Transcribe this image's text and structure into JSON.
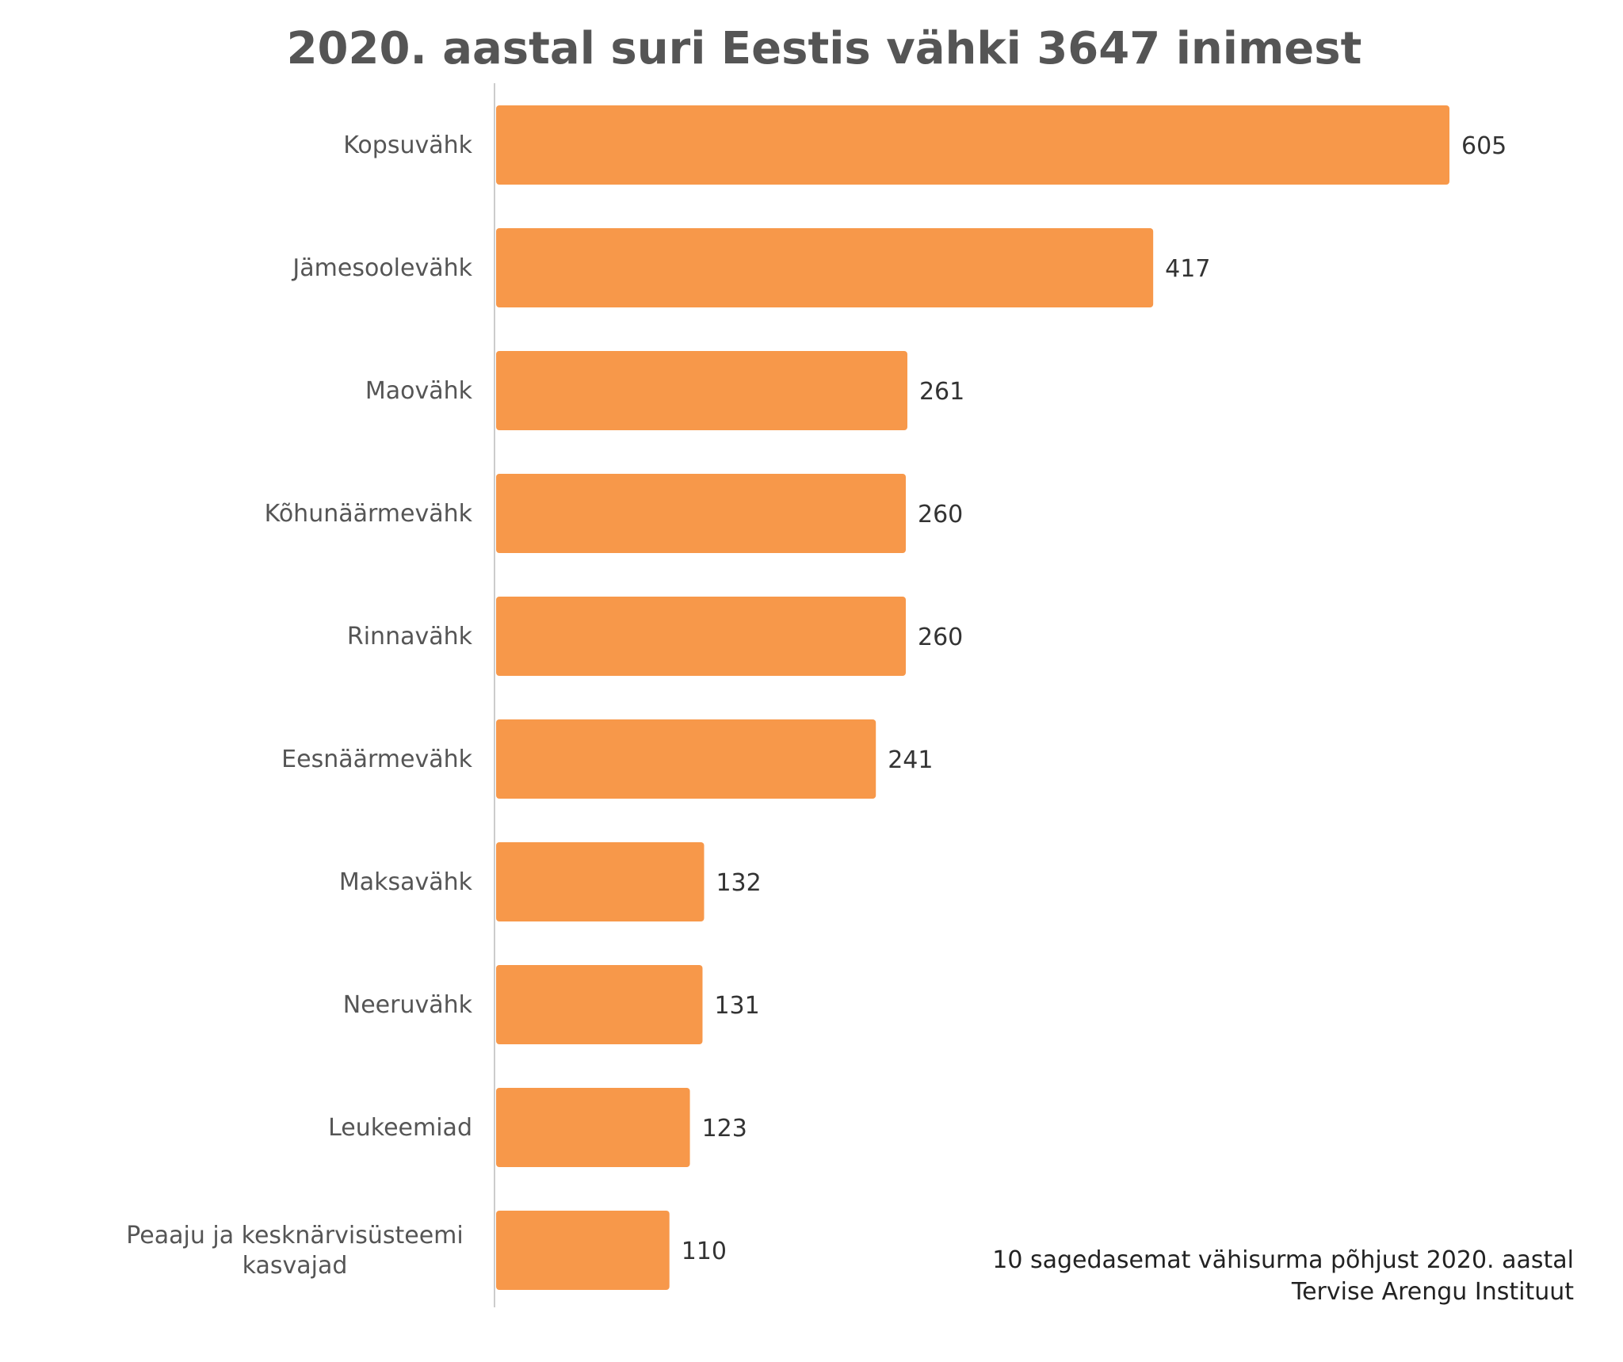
{
  "chart_data": {
    "type": "bar",
    "orientation": "horizontal",
    "title": "2020. aastal suri Eestis vähki 3647 inimest",
    "categories": [
      "Kopsuvähk",
      "Jämesoolevähk",
      "Maovähk",
      "Kõhunäärmevähk",
      "Rinnavähk",
      "Eesnäärmevähk",
      "Maksavähk",
      "Neeruvähk",
      "Leukeemiad",
      "Peaaju ja kesknärvisüsteemi kasvajad"
    ],
    "category_lines": [
      [
        "Kopsuvähk"
      ],
      [
        "Jämesoolevähk"
      ],
      [
        "Maovähk"
      ],
      [
        "Kõhunäärmevähk"
      ],
      [
        "Rinnavähk"
      ],
      [
        "Eesnäärmevähk"
      ],
      [
        "Maksavähk"
      ],
      [
        "Neeruvähk"
      ],
      [
        "Leukeemiad"
      ],
      [
        "Peaaju ja kesknärvisüsteemi",
        "kasvajad"
      ]
    ],
    "values": [
      605,
      417,
      261,
      260,
      260,
      241,
      132,
      131,
      123,
      110
    ],
    "xlim": [
      0,
      605
    ],
    "bar_color": "#F7984A",
    "axis_color": "#cccccc",
    "grid": false,
    "legend": "none",
    "source_lines": [
      "10 sagedasemat vähisurma põhjust 2020. aastal",
      "Tervise Arengu Instituut"
    ]
  }
}
